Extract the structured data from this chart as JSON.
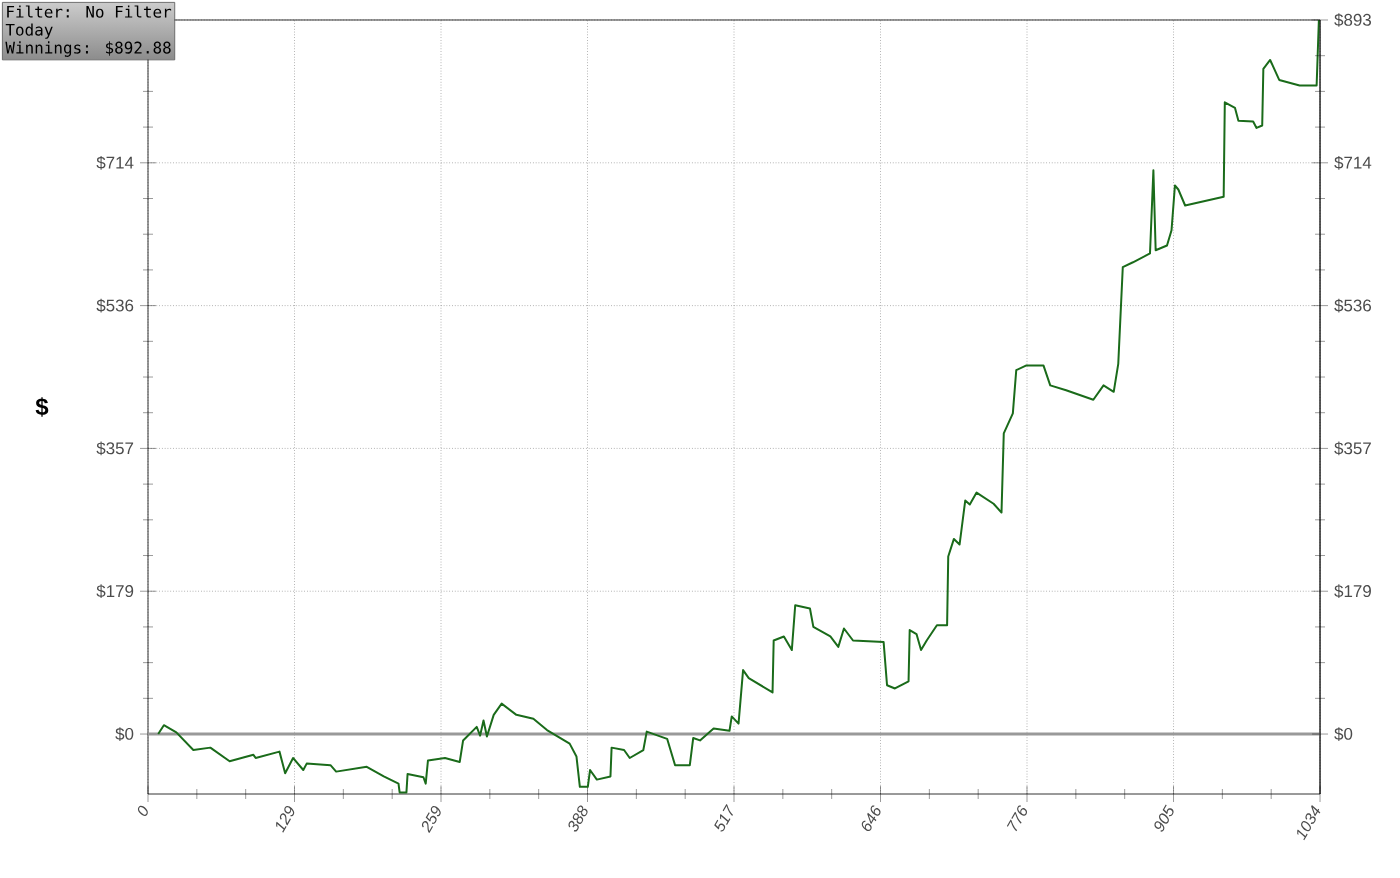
{
  "chart_data": {
    "type": "line",
    "ylabel": "$",
    "annotations": [
      "Filter: No Filter",
      "Today",
      "Winnings: $892.88"
    ],
    "x": [
      9,
      14,
      25,
      40,
      55,
      72,
      93,
      95,
      116,
      121,
      128,
      137,
      140,
      161,
      166,
      193,
      208,
      221,
      222,
      228,
      229,
      243,
      245,
      247,
      262,
      275,
      278,
      290,
      293,
      296,
      299,
      305,
      312,
      325,
      340,
      352,
      372,
      378,
      381,
      388,
      390,
      396,
      408,
      409,
      420,
      425,
      437,
      440,
      458,
      465,
      478,
      481,
      487,
      499,
      513,
      515,
      521,
      525,
      530,
      551,
      552,
      561,
      568,
      571,
      584,
      587,
      602,
      609,
      614,
      622,
      649,
      652,
      659,
      671,
      672,
      678,
      682,
      687,
      696,
      705,
      706,
      711,
      716,
      721,
      725,
      731,
      746,
      753,
      755,
      763,
      766,
      775,
      790,
      796,
      810,
      834,
      843,
      852,
      856,
      860,
      869,
      884,
      887,
      889,
      899,
      903,
      906,
      909,
      915,
      949,
      950,
      959,
      962,
      975,
      978,
      983,
      984,
      990,
      998,
      1016,
      1031,
      1033
    ],
    "series": [
      {
        "color": "#1a6b1a",
        "values": [
          0,
          11,
          2,
          -20,
          -17,
          -34,
          -26,
          -30,
          -22,
          -49,
          -30,
          -45,
          -37,
          -39,
          -47,
          -41,
          -53,
          -62,
          -73,
          -73,
          -50,
          -54,
          -62,
          -33,
          -30,
          -35,
          -8,
          9,
          -2,
          17,
          -3,
          24,
          38,
          24,
          19,
          5,
          -12,
          -28,
          -66,
          -66,
          -45,
          -57,
          -53,
          -17,
          -20,
          -30,
          -20,
          3,
          -6,
          -39,
          -39,
          -5,
          -8,
          7,
          4,
          22,
          13,
          80,
          70,
          52,
          117,
          122,
          105,
          161,
          157,
          134,
          122,
          109,
          132,
          117,
          115,
          61,
          57,
          66,
          130,
          125,
          105,
          117,
          136,
          136,
          222,
          244,
          237,
          292,
          287,
          302,
          288,
          277,
          376,
          401,
          455,
          461,
          461,
          436,
          430,
          418,
          436,
          428,
          463,
          584,
          590,
          601,
          705,
          605,
          611,
          630,
          686,
          681,
          661,
          672,
          790,
          783,
          767,
          766,
          758,
          761,
          832,
          843,
          818,
          811,
          811,
          892.88
        ]
      }
    ],
    "xlim": [
      0,
      1034
    ],
    "xticks": [
      0,
      {
        "value": 129.25,
        "label": "129"
      },
      {
        "value": 258.5,
        "label": "259"
      },
      {
        "value": 387.75,
        "label": "388"
      },
      517,
      {
        "value": 646.25,
        "label": "646"
      },
      {
        "value": 775.5,
        "label": "776"
      },
      {
        "value": 904.75,
        "label": "905"
      },
      1034
    ],
    "ylim": [
      -75,
      893
    ],
    "yticks": [
      {
        "value": 0,
        "label": "$0"
      },
      {
        "value": 178.6,
        "label": "$179"
      },
      {
        "value": 357.2,
        "label": "$357"
      },
      {
        "value": 535.8,
        "label": "$536"
      },
      {
        "value": 714.4,
        "label": "$714"
      },
      {
        "value": 893,
        "label": null
      }
    ],
    "y2lim": [
      -75,
      893
    ],
    "y2ticks": [
      {
        "value": 0,
        "label": "$0"
      },
      {
        "value": 178.6,
        "label": "$179"
      },
      {
        "value": 357.2,
        "label": "$357"
      },
      {
        "value": 535.8,
        "label": "$536"
      },
      {
        "value": 714.4,
        "label": "$714"
      },
      {
        "value": 893,
        "label": "$893"
      }
    ],
    "grid": true,
    "marker": "none",
    "line_style": "solid",
    "ref_lines": [
      {
        "axis": "y",
        "value": 0,
        "color": "#999999"
      }
    ]
  }
}
